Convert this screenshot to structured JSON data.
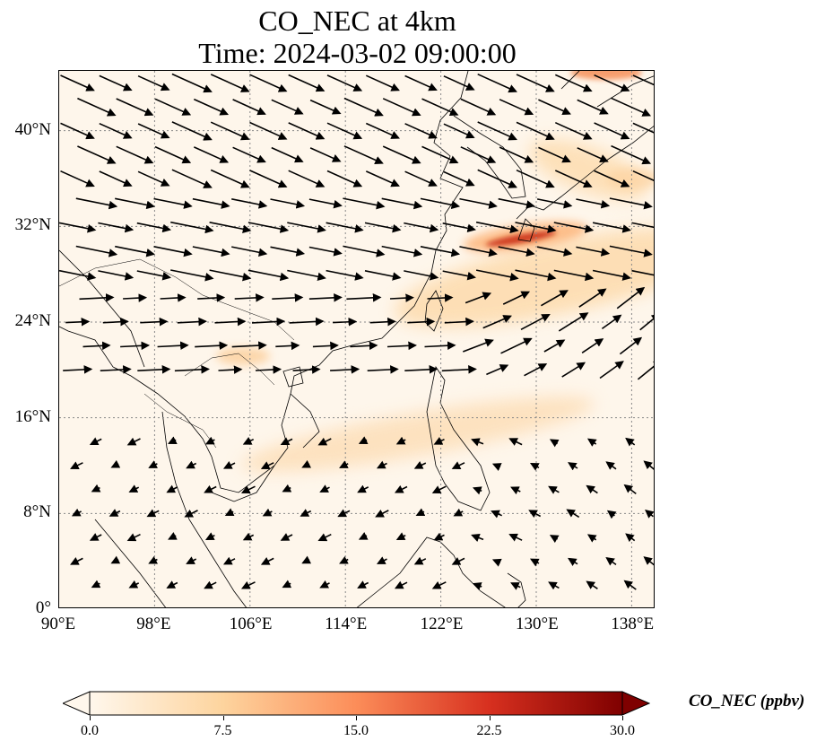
{
  "title": {
    "line1": "CO_NEC at 4km",
    "line2": "Time: 2024-03-02 09:00:00"
  },
  "map": {
    "lon_range": [
      90,
      140
    ],
    "lat_range": [
      0,
      45
    ],
    "x_ticks": [
      {
        "lon": 90,
        "label": "90°E"
      },
      {
        "lon": 98,
        "label": "98°E"
      },
      {
        "lon": 106,
        "label": "106°E"
      },
      {
        "lon": 114,
        "label": "114°E"
      },
      {
        "lon": 122,
        "label": "122°E"
      },
      {
        "lon": 130,
        "label": "130°E"
      },
      {
        "lon": 138,
        "label": "138°E"
      }
    ],
    "y_ticks": [
      {
        "lat": 0,
        "label": "0°"
      },
      {
        "lat": 8,
        "label": "8°N"
      },
      {
        "lat": 16,
        "label": "16°N"
      },
      {
        "lat": 24,
        "label": "24°N"
      },
      {
        "lat": 32,
        "label": "32°N"
      },
      {
        "lat": 40,
        "label": "40°N"
      }
    ],
    "gridline_style": "dotted gray",
    "background_color": "#fef6eb",
    "coastline_color": "#000000",
    "vector_color": "#000000"
  },
  "colorbar": {
    "label": "CO_NEC (ppbv)",
    "min": 0.0,
    "max": 30.0,
    "ticks": [
      {
        "value": 0.0,
        "label": "0.0"
      },
      {
        "value": 7.5,
        "label": "7.5"
      },
      {
        "value": 15.0,
        "label": "15.0"
      },
      {
        "value": 22.5,
        "label": "22.5"
      },
      {
        "value": 30.0,
        "label": "30.0"
      }
    ],
    "colormap": "OrRd",
    "colors": [
      "#fff7ec",
      "#fdd49e",
      "#fc8d59",
      "#d7301f",
      "#7f0000"
    ],
    "extend": "both"
  },
  "concentration_features": [
    {
      "name": "japan-plume",
      "lon": [
        121,
        133
      ],
      "lat": [
        29.5,
        32.5
      ],
      "value": 26
    },
    {
      "name": "east-china-sea-plume",
      "lon": [
        118,
        140
      ],
      "lat": [
        27,
        33
      ],
      "value": 9
    },
    {
      "name": "south-china-sea-band",
      "lon": [
        107,
        128
      ],
      "lat": [
        17,
        22
      ],
      "value": 8
    },
    {
      "name": "korea-north-band",
      "lon": [
        128,
        140
      ],
      "lat": [
        36,
        45
      ],
      "value": 10
    },
    {
      "name": "hokkaido-hotspot",
      "lon": [
        133,
        139
      ],
      "lat": [
        44,
        45
      ],
      "value": 16
    }
  ],
  "wind_regions": [
    {
      "name": "westerly-north",
      "lat": [
        36,
        45
      ],
      "u": 1.0,
      "v": -0.45,
      "speed": "strong"
    },
    {
      "name": "westerly-mid",
      "lat": [
        28,
        36
      ],
      "u": 1.0,
      "v": -0.2,
      "speed": "strong"
    },
    {
      "name": "west-south",
      "lat": [
        20,
        28
      ],
      "u": 1.0,
      "v": 0.05,
      "speed": "moderate"
    },
    {
      "name": "northeast-trades",
      "lat": [
        0,
        16
      ],
      "u": -1.0,
      "v": -0.5,
      "speed": "weak"
    }
  ]
}
